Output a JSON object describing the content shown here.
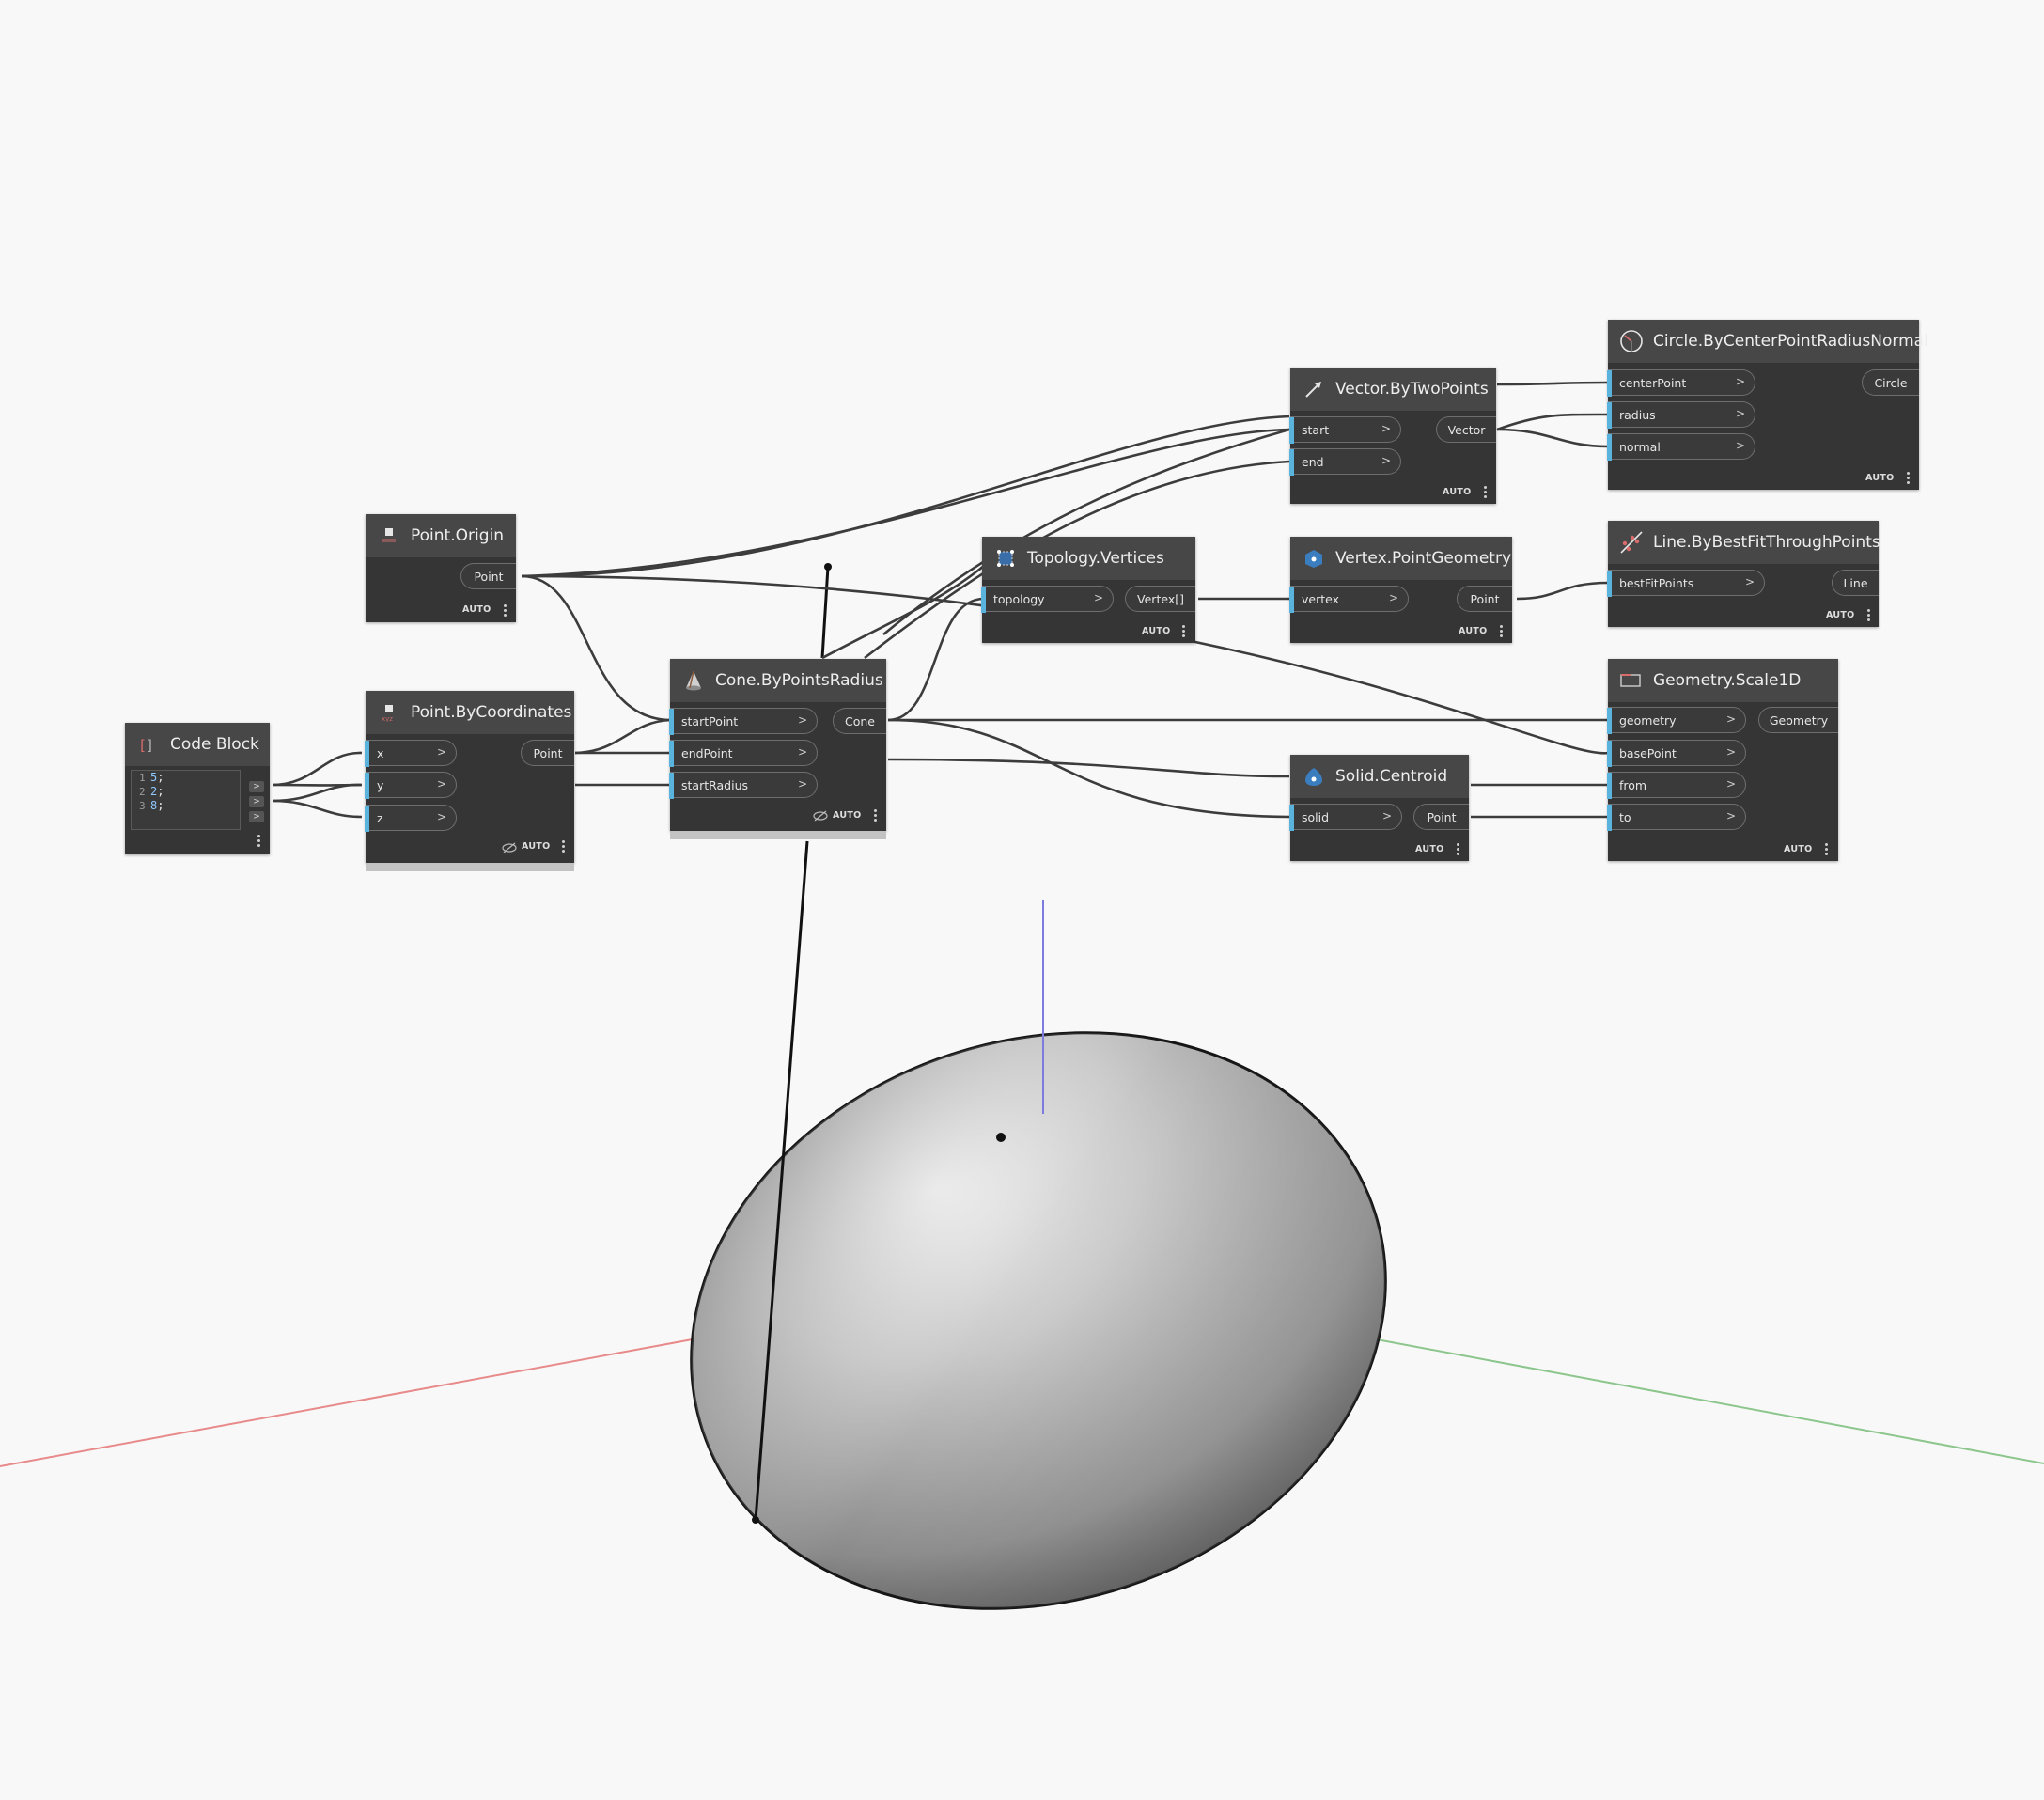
{
  "colors": {
    "background": "#f8f8f8",
    "node_body": "#353535",
    "node_header": "#474747",
    "port_accent": "#5ab3dd",
    "wire": "#3c3c3c",
    "axis_x": "#e07070",
    "axis_y": "#6fb86f",
    "axis_z": "#5b5bdb"
  },
  "nodes": {
    "code_block": {
      "title": "Code Block",
      "icon": "code-block-icon",
      "lines": [
        {
          "ln": "1",
          "value": "5",
          "suffix": ";"
        },
        {
          "ln": "2",
          "value": "2",
          "suffix": ";"
        },
        {
          "ln": "3",
          "value": "8",
          "suffix": ";"
        }
      ],
      "out_glyph": ">"
    },
    "point_origin": {
      "title": "Point.Origin",
      "icon": "point-icon",
      "output": "Point",
      "lacing": "AUTO"
    },
    "point_by_coordinates": {
      "title": "Point.ByCoordinates",
      "icon": "point-xyz-icon",
      "inputs": [
        "x",
        "y",
        "z"
      ],
      "output": "Point",
      "lacing": "AUTO"
    },
    "cone_by_points_radius": {
      "title": "Cone.ByPointsRadius",
      "icon": "cone-icon",
      "inputs": [
        "startPoint",
        "endPoint",
        "startRadius"
      ],
      "output": "Cone",
      "lacing": "AUTO"
    },
    "topology_vertices": {
      "title": "Topology.Vertices",
      "icon": "topology-icon",
      "inputs": [
        "topology"
      ],
      "output": "Vertex[]",
      "lacing": "AUTO"
    },
    "vector_by_two_points": {
      "title": "Vector.ByTwoPoints",
      "icon": "vector-icon",
      "inputs": [
        "start",
        "end"
      ],
      "output": "Vector",
      "lacing": "AUTO"
    },
    "vertex_point_geometry": {
      "title": "Vertex.PointGeometry",
      "icon": "vertex-icon",
      "inputs": [
        "vertex"
      ],
      "output": "Point",
      "lacing": "AUTO"
    },
    "solid_centroid": {
      "title": "Solid.Centroid",
      "icon": "solid-centroid-icon",
      "inputs": [
        "solid"
      ],
      "output": "Point",
      "lacing": "AUTO"
    },
    "circle_by_center_point_radius_normal": {
      "title": "Circle.ByCenterPointRadiusNormal",
      "icon": "circle-icon",
      "inputs": [
        "centerPoint",
        "radius",
        "normal"
      ],
      "output": "Circle",
      "lacing": "AUTO"
    },
    "line_by_best_fit_through_points": {
      "title": "Line.ByBestFitThroughPoints",
      "icon": "line-fit-icon",
      "inputs": [
        "bestFitPoints"
      ],
      "output": "Line",
      "lacing": "AUTO"
    },
    "geometry_scale_1d": {
      "title": "Geometry.Scale1D",
      "icon": "scale-icon",
      "inputs": [
        "geometry",
        "basePoint",
        "from",
        "to"
      ],
      "output": "Geometry",
      "lacing": "AUTO"
    }
  },
  "port_chevron": ">"
}
